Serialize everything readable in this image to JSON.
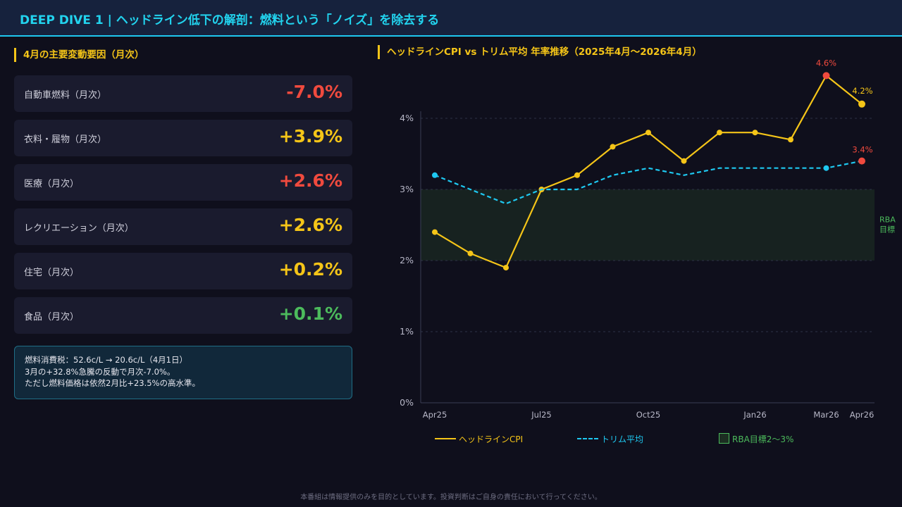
{
  "header": {
    "title": "DEEP DIVE 1 | ヘッドライン低下の解剖：燃料という「ノイズ」を除去する"
  },
  "factors_section": {
    "title": "4月の主要変動要因（月次）",
    "items": [
      {
        "label": "自動車燃料（月次）",
        "value": "-7.0%",
        "color": "#f04a3e"
      },
      {
        "label": "衣料・履物（月次）",
        "value": "+3.9%",
        "color": "#f5c518"
      },
      {
        "label": "医療（月次）",
        "value": "+2.6%",
        "color": "#f04a3e"
      },
      {
        "label": "レクリエーション（月次）",
        "value": "+2.6%",
        "color": "#f5c518"
      },
      {
        "label": "住宅（月次）",
        "value": "+0.2%",
        "color": "#f5c518"
      },
      {
        "label": "食品（月次）",
        "value": "+0.1%",
        "color": "#4cbb5c"
      }
    ]
  },
  "note": {
    "lines": [
      "燃料消費税：52.6c/L → 20.6c/L（4月1日）",
      "3月の+32.8%急騰の反動で月次-7.0%。",
      "ただし燃料価格は依然2月比+23.5%の高水準。"
    ]
  },
  "chart_section": {
    "title": "ヘッドラインCPI vs トリム平均 年率推移（2025年4月〜2026年4月）"
  },
  "chart_data": {
    "type": "line",
    "x": [
      "Apr25",
      "May25",
      "Jun25",
      "Jul25",
      "Aug25",
      "Sep25",
      "Oct25",
      "Nov25",
      "Dec25",
      "Jan26",
      "Feb26",
      "Mar26",
      "Apr26"
    ],
    "x_tick_labels": [
      "Apr25",
      "Jul25",
      "Oct25",
      "Jan26",
      "Mar26",
      "Apr26"
    ],
    "y_ticks": [
      "0%",
      "1%",
      "2%",
      "3%",
      "4%"
    ],
    "ylim": [
      0,
      4
    ],
    "series": [
      {
        "name": "ヘッドラインCPI",
        "color": "#f5c518",
        "style": "solid",
        "values": [
          2.4,
          2.1,
          1.9,
          3.0,
          3.2,
          3.6,
          3.8,
          3.4,
          3.8,
          3.8,
          3.7,
          4.6,
          4.2
        ]
      },
      {
        "name": "トリム平均",
        "color": "#1ec8f0",
        "style": "dashed",
        "values": [
          3.2,
          null,
          2.8,
          3.0,
          3.0,
          3.2,
          3.3,
          3.2,
          3.3,
          3.3,
          3.3,
          3.3,
          3.4
        ],
        "markers": [
          0,
          11,
          12
        ]
      }
    ],
    "band": {
      "from": 2,
      "to": 3,
      "label_lines": [
        "RBA",
        "目標"
      ],
      "legend": "RBA目標2〜3%",
      "color": "#4cbb5c"
    },
    "annotations": [
      {
        "text": "4.6%",
        "color": "#f04a3e"
      },
      {
        "text": "4.2%",
        "color": "#f5c518"
      },
      {
        "text": "3.4%",
        "color": "#f04a3e"
      }
    ],
    "grid": true
  },
  "footer": {
    "text": "本番組は情報提供のみを目的としています。投資判断はご自身の責任において行ってください。"
  }
}
